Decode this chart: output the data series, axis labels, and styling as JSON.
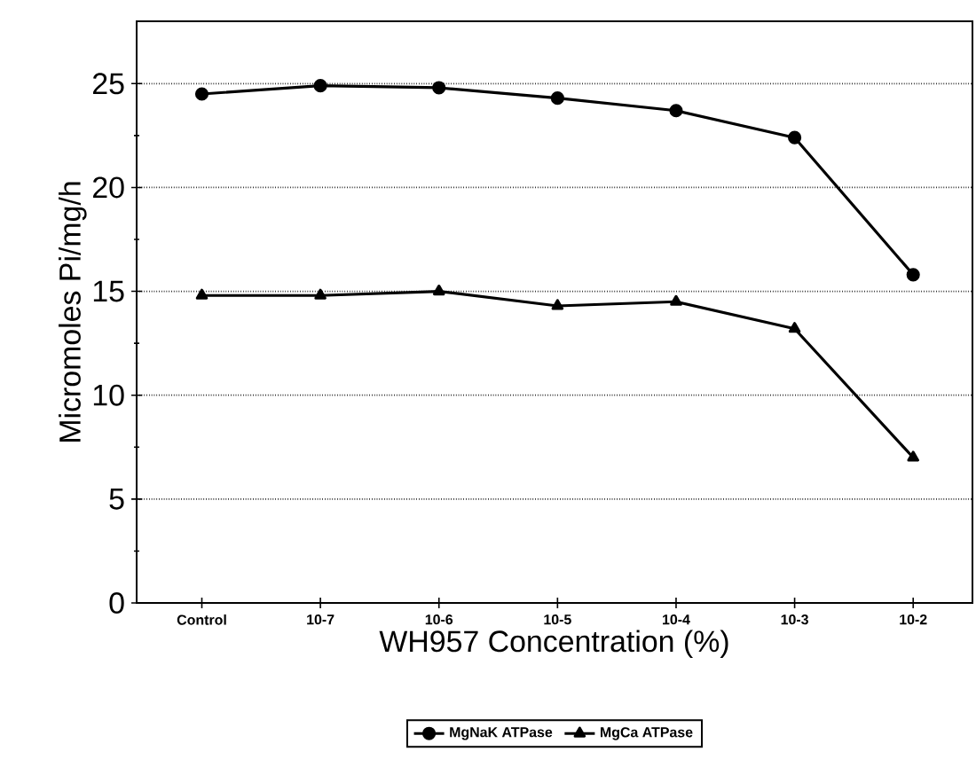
{
  "chart_data": {
    "type": "line",
    "xlabel": "WH957 Concentration (%)",
    "ylabel": "Micromoles Pi/mg/h",
    "categories": [
      "Control",
      "10-7",
      "10-6",
      "10-5",
      "10-4",
      "10-3",
      "10-2"
    ],
    "series": [
      {
        "name": "MgNaK ATPase",
        "color": "#000000",
        "marker": "circle",
        "values": [
          24.5,
          24.9,
          24.8,
          24.3,
          23.7,
          22.4,
          15.8
        ]
      },
      {
        "name": "MgCa ATPase",
        "color": "#000000",
        "marker": "triangle",
        "values": [
          14.8,
          14.8,
          15.0,
          14.3,
          14.5,
          13.2,
          7.0
        ]
      }
    ],
    "ylim": [
      0,
      28
    ],
    "yticks": [
      0,
      5,
      10,
      15,
      20,
      25
    ],
    "grid": "y",
    "legend": "bottom",
    "line_style": "solid"
  }
}
